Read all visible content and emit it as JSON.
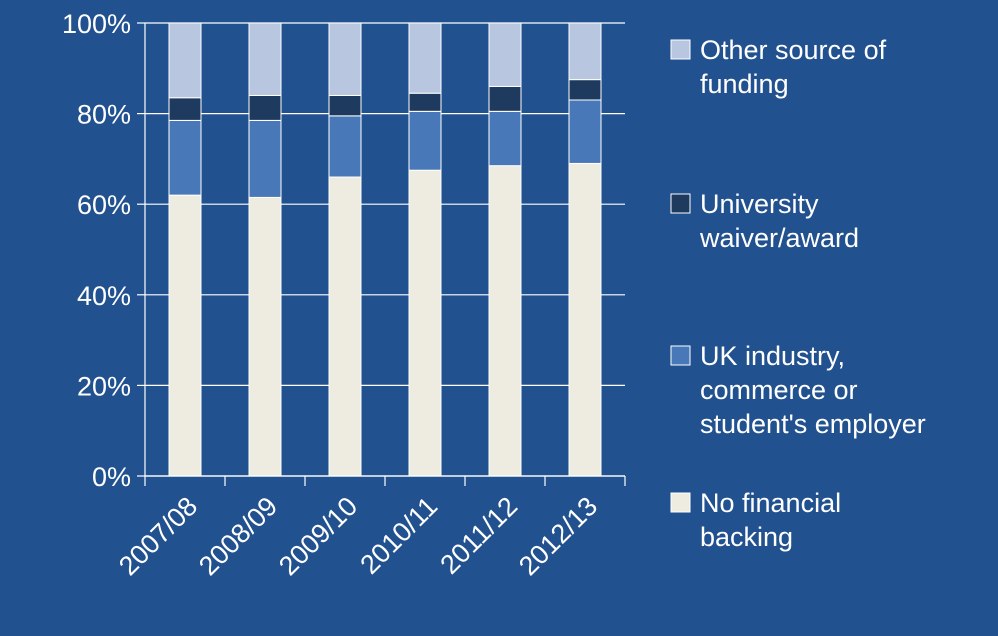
{
  "colors": {
    "background": "#22518f",
    "axis": "#ffffff",
    "segment_outline": "#ffffff"
  },
  "chart_data": {
    "type": "bar",
    "stacked": true,
    "percent": true,
    "title": "",
    "xlabel": "",
    "ylabel": "",
    "ylim": [
      0,
      100
    ],
    "y_ticks": [
      "0%",
      "20%",
      "40%",
      "60%",
      "80%",
      "100%"
    ],
    "grid": true,
    "legend_position": "right",
    "categories": [
      "2007/08",
      "2008/09",
      "2009/10",
      "2010/11",
      "2011/12",
      "2012/13"
    ],
    "series": [
      {
        "name": "No financial backing",
        "color": "#eeece1",
        "values": [
          62,
          61.5,
          66,
          67.5,
          68.5,
          69
        ]
      },
      {
        "name": "UK industry, commerce or student's employer",
        "color": "#4878b8",
        "values": [
          16.5,
          17,
          13.5,
          13,
          12,
          14
        ]
      },
      {
        "name": "University waiver/award",
        "color": "#1f3a5f",
        "values": [
          5,
          5.5,
          4.5,
          4,
          5.5,
          4.5
        ]
      },
      {
        "name": "Other source of funding",
        "color": "#b8c6e0",
        "values": [
          16.5,
          16,
          16,
          15.5,
          14,
          12.5
        ]
      }
    ],
    "legend": [
      {
        "lines": [
          "Other source of",
          "funding"
        ],
        "series_index": 3
      },
      {
        "lines": [
          "University",
          "waiver/award"
        ],
        "series_index": 2
      },
      {
        "lines": [
          "UK industry,",
          "commerce or",
          "student's employer"
        ],
        "series_index": 1
      },
      {
        "lines": [
          "No financial",
          "backing"
        ],
        "series_index": 0
      }
    ]
  }
}
